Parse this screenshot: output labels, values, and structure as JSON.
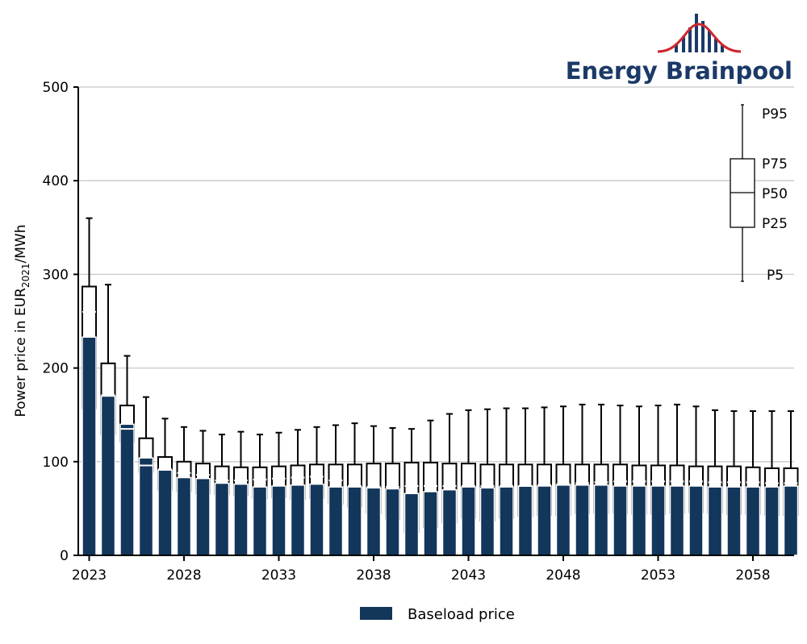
{
  "logo": {
    "text": "Energy Brainpool"
  },
  "colors": {
    "baseload": "#13365b",
    "grid": "#c8c8c8",
    "axis": "#000000",
    "logo_navy": "#1b3a67",
    "logo_red": "#d0262e"
  },
  "chart_data": {
    "type": "box",
    "ylabel_main": "Power price in EUR",
    "ylabel_sub": "2021",
    "ylabel_tail": "/MWh",
    "ylim": [
      0,
      500
    ],
    "yticks": [
      0,
      100,
      200,
      300,
      400,
      500
    ],
    "xtick_labels": [
      "2023",
      "2028",
      "2033",
      "2038",
      "2043",
      "2048",
      "2053",
      "2058"
    ],
    "grid": "horizontal",
    "legend": {
      "position": "bottom",
      "entries": [
        "Baseload price"
      ]
    },
    "key": {
      "labels": [
        "P95",
        "P75",
        "P50",
        "P25",
        "P5"
      ]
    },
    "x": [
      2023,
      2024,
      2025,
      2026,
      2027,
      2028,
      2029,
      2030,
      2031,
      2032,
      2033,
      2034,
      2035,
      2036,
      2037,
      2038,
      2039,
      2040,
      2041,
      2042,
      2043,
      2044,
      2045,
      2046,
      2047,
      2048,
      2049,
      2050,
      2051,
      2052,
      2053,
      2054,
      2055,
      2056,
      2057,
      2058,
      2059,
      2060
    ],
    "series": [
      {
        "name": "Baseload price",
        "values": [
          233,
          170,
          140,
          104,
          91,
          83,
          82,
          77,
          76,
          73,
          74,
          75,
          76,
          73,
          73,
          72,
          71,
          66,
          68,
          70,
          73,
          72,
          73,
          74,
          74,
          75,
          75,
          75,
          74,
          74,
          74,
          74,
          74,
          73,
          73,
          73,
          73,
          74
        ]
      }
    ],
    "p5": [
      103,
      38,
      86,
      52,
      17,
      13,
      12,
      8,
      5,
      62,
      62,
      60,
      61,
      55,
      54,
      45,
      40,
      25,
      30,
      35,
      40,
      37,
      40,
      42,
      43,
      43,
      45,
      45,
      45,
      44,
      44,
      45,
      46,
      45,
      44,
      44,
      43,
      43
    ],
    "p25": [
      157,
      129,
      121,
      89,
      70,
      68,
      66,
      65,
      64,
      61,
      62,
      60,
      61,
      55,
      52,
      45,
      39,
      25,
      30,
      35,
      40,
      37,
      40,
      42,
      43,
      43,
      45,
      45,
      45,
      44,
      44,
      45,
      46,
      45,
      44,
      44,
      43,
      43
    ],
    "p50": [
      260,
      171,
      135,
      96,
      92,
      88,
      86,
      80,
      80,
      81,
      82,
      83,
      84,
      80,
      74,
      73,
      73,
      74,
      74,
      74,
      74,
      74,
      74,
      74,
      75,
      76,
      77,
      78,
      79,
      79,
      79,
      79,
      79,
      78,
      78,
      78,
      77,
      77
    ],
    "p75": [
      287,
      205,
      160,
      125,
      105,
      100,
      98,
      95,
      94,
      94,
      95,
      96,
      97,
      97,
      97,
      98,
      98,
      99,
      99,
      98,
      98,
      97,
      97,
      97,
      97,
      97,
      97,
      97,
      97,
      96,
      96,
      96,
      95,
      95,
      95,
      94,
      93,
      93
    ],
    "p95": [
      360,
      289,
      213,
      169,
      146,
      137,
      133,
      129,
      132,
      129,
      131,
      134,
      137,
      139,
      141,
      138,
      136,
      135,
      144,
      151,
      155,
      156,
      157,
      157,
      158,
      159,
      161,
      161,
      160,
      159,
      160,
      161,
      159,
      155,
      154,
      154,
      154,
      154
    ]
  }
}
